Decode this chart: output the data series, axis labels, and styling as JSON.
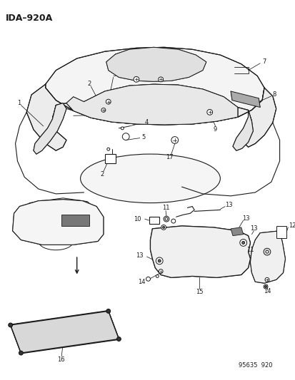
{
  "title": "IDA–920A",
  "part_number": "95635  920",
  "bg_color": "#ffffff",
  "lc": "#1a1a1a",
  "fig_width": 4.14,
  "fig_height": 5.33,
  "dpi": 100,
  "fs": 6.0
}
